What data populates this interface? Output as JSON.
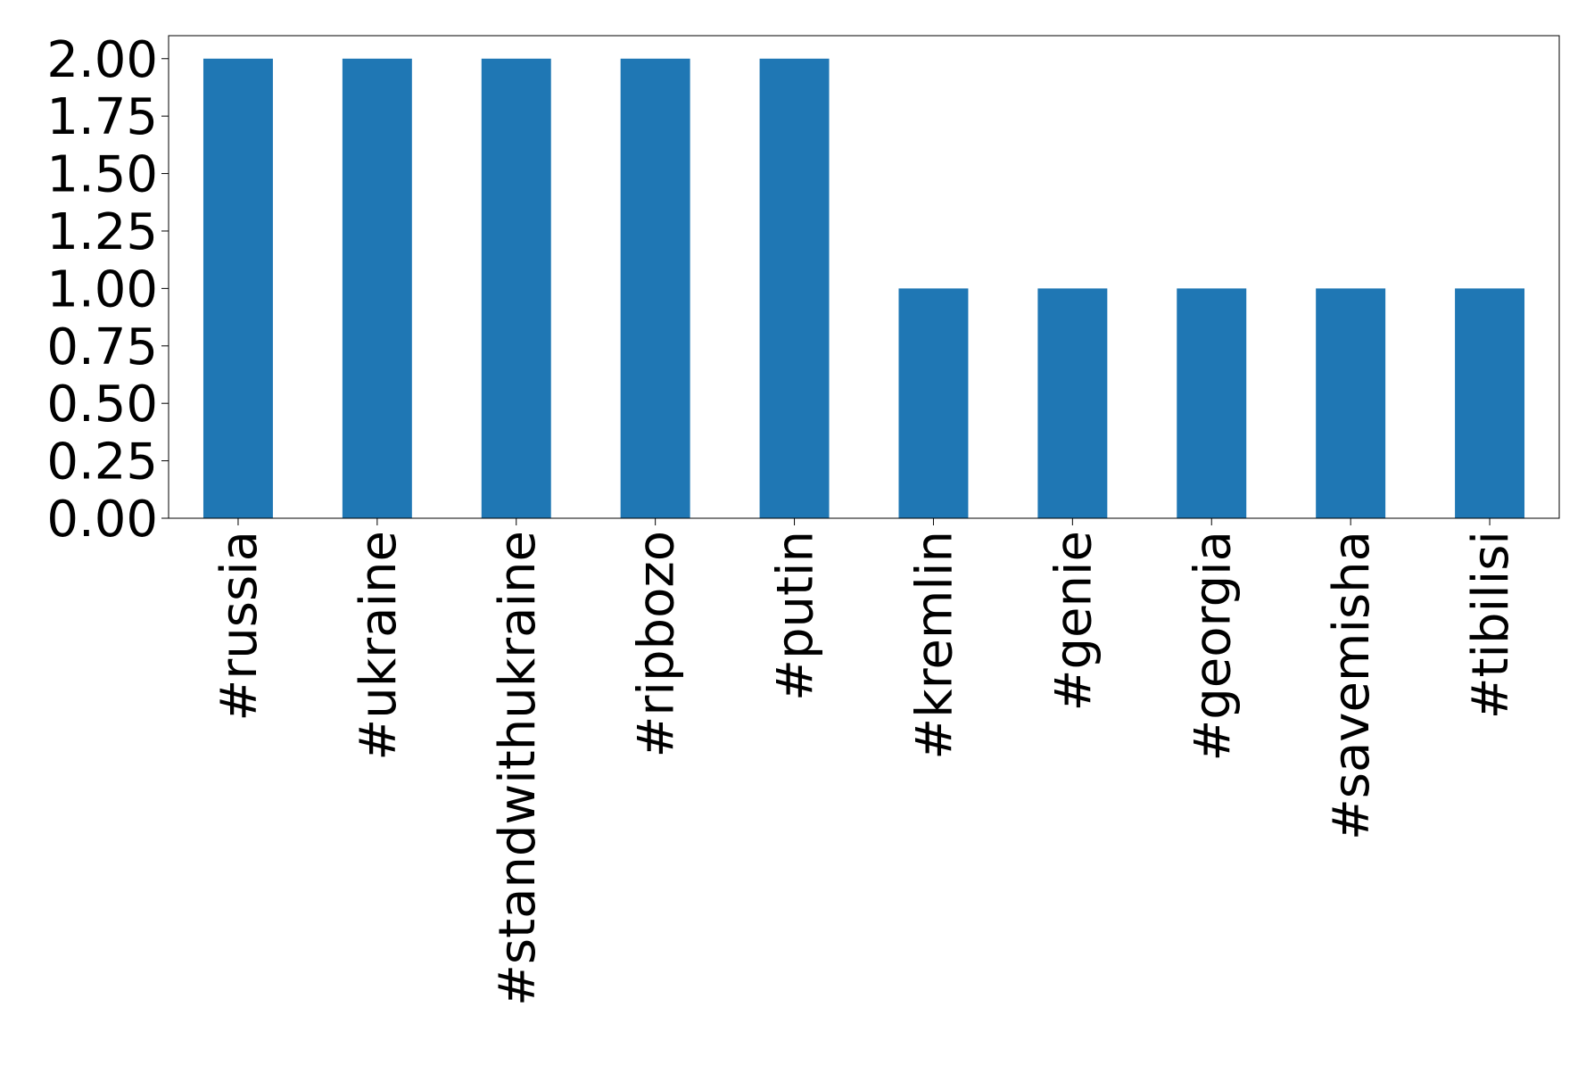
{
  "chart_data": {
    "type": "bar",
    "categories": [
      "#russia",
      "#ukraine",
      "#standwithukraine",
      "#ripbozo",
      "#putin",
      "#kremlin",
      "#genie",
      "#georgia",
      "#savemisha",
      "#tibilisi"
    ],
    "values": [
      2,
      2,
      2,
      2,
      2,
      1,
      1,
      1,
      1,
      1
    ],
    "color": "#1f77b4",
    "ylim": [
      0,
      2.1
    ],
    "yticks": [
      {
        "value": 0,
        "label": "0.00"
      },
      {
        "value": 0.25,
        "label": "0.25"
      },
      {
        "value": 0.5,
        "label": "0.50"
      },
      {
        "value": 0.75,
        "label": "0.75"
      },
      {
        "value": 1,
        "label": "1.00"
      },
      {
        "value": 1.25,
        "label": "1.25"
      },
      {
        "value": 1.5,
        "label": "1.50"
      },
      {
        "value": 1.75,
        "label": "1.75"
      },
      {
        "value": 2,
        "label": "2.00"
      }
    ],
    "grid": false
  }
}
